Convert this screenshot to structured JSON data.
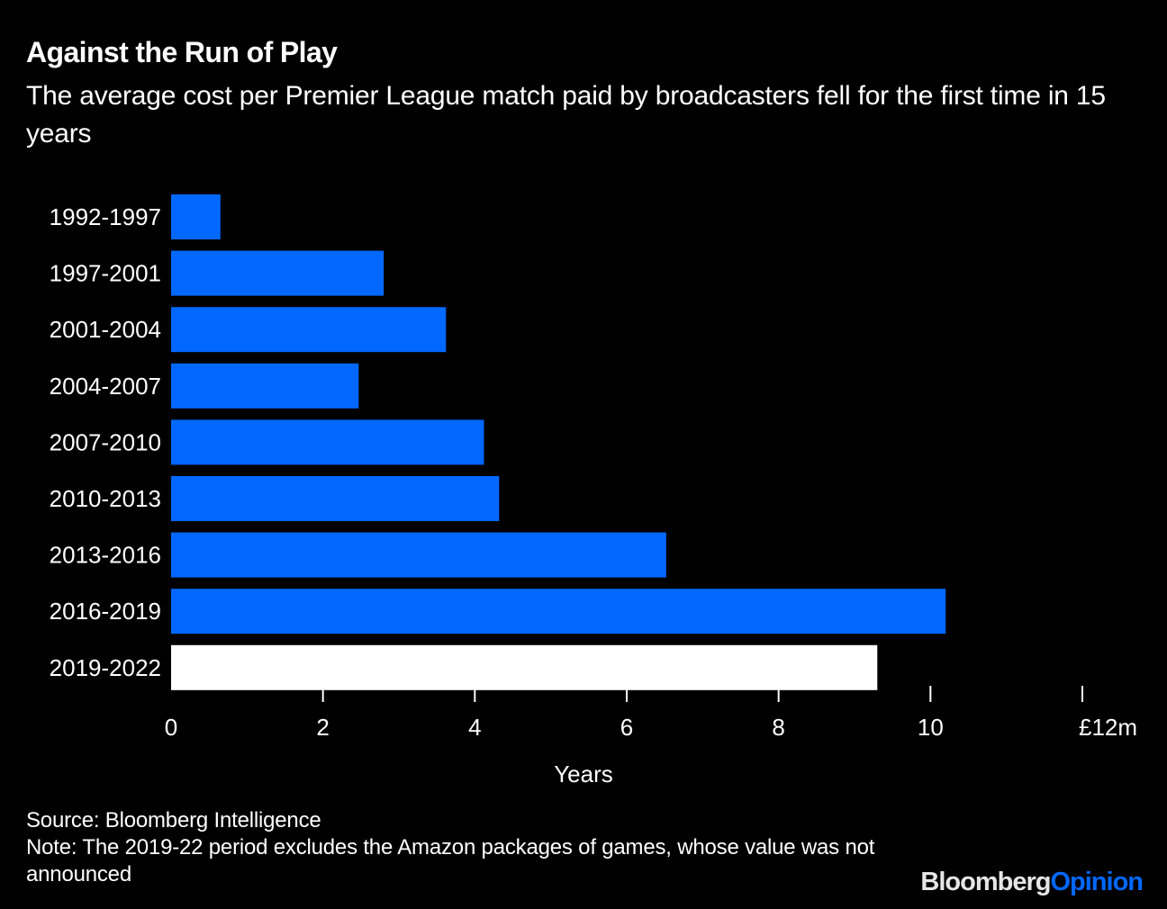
{
  "header": {
    "title": "Against the Run of Play",
    "subtitle": "The average cost per Premier League match paid by broadcasters fell for the first time in 15 years"
  },
  "chart_data": {
    "type": "bar",
    "orientation": "horizontal",
    "categories": [
      "1992-1997",
      "1997-2001",
      "2001-2004",
      "2004-2007",
      "2007-2010",
      "2010-2013",
      "2013-2016",
      "2016-2019",
      "2019-2022"
    ],
    "values": [
      0.65,
      2.8,
      3.62,
      2.47,
      4.12,
      4.32,
      6.52,
      10.2,
      9.3
    ],
    "highlight_index": 8,
    "xticks": [
      0,
      2,
      4,
      6,
      8,
      10,
      12
    ],
    "xtick_labels": [
      "0",
      "2",
      "4",
      "6",
      "8",
      "10",
      "£12m"
    ],
    "xlim": [
      0,
      12
    ],
    "xlabel": "Years",
    "colors": {
      "bar": "#0068ff",
      "highlight": "#ffffff",
      "axis": "#ffffff",
      "background": "#000000"
    }
  },
  "footer": {
    "source": "Source: Bloomberg Intelligence",
    "note": "Note: The 2019-22 period excludes the Amazon packages of games, whose value was not announced"
  },
  "brand": {
    "part1": "Bloomberg",
    "part2": "Opinion"
  }
}
